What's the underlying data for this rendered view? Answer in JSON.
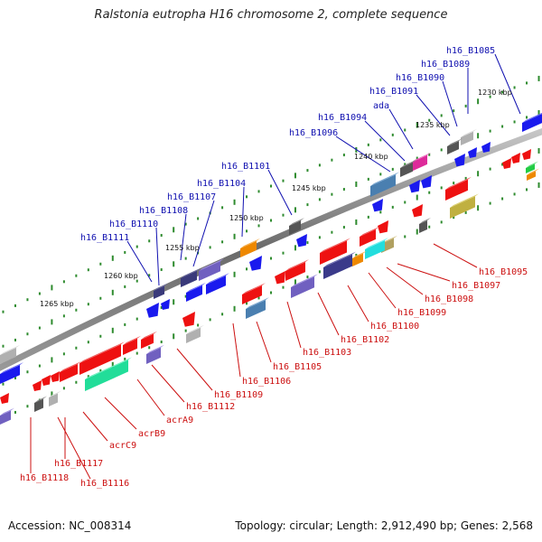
{
  "title": "Ralstonia eutropha H16 chromosome 2, complete sequence",
  "accession_label": "Accession: NC_008314",
  "summary_label": "Topology: circular; Length: 2,912,490 bp; Genes: 2,568",
  "colors": {
    "backbone": "#8a8a8a",
    "tick": "#2e8b2e",
    "forward_label": "#1010b0",
    "reverse_label": "#cc1010",
    "forward_gene": "#1a1aee",
    "reverse_gene": "#ee1111"
  },
  "chart_data": {
    "type": "circular-genome-map",
    "scale_labels": [
      "1230 kbp",
      "1235 kbp",
      "1240 kbp",
      "1245 kbp",
      "1250 kbp",
      "1255 kbp",
      "1260 kbp",
      "1265 kbp"
    ],
    "forward_labels": [
      "h16_B1085",
      "h16_B1089",
      "h16_B1090",
      "h16_B1091",
      "ada",
      "h16_B1094",
      "h16_B1096",
      "h16_B1101",
      "h16_B1104",
      "h16_B1107",
      "h16_B1108",
      "h16_B1110",
      "h16_B1111"
    ],
    "reverse_labels": [
      "h16_B1095",
      "h16_B1097",
      "h16_B1098",
      "h16_B1099",
      "h16_B1100",
      "h16_B1102",
      "h16_B1103",
      "h16_B1105",
      "h16_B1106",
      "h16_B1109",
      "h16_B1112",
      "acrA9",
      "acrB9",
      "acrC9",
      "h16_B1117",
      "h16_B1118",
      "h16_B1116"
    ]
  }
}
